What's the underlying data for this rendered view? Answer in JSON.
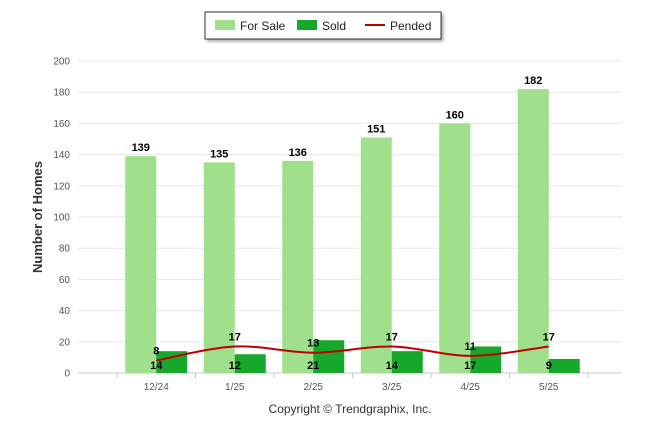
{
  "chart_data": {
    "type": "bar",
    "categories": [
      "12/24",
      "1/25",
      "2/25",
      "3/25",
      "4/25",
      "5/25"
    ],
    "series": [
      {
        "name": "For Sale",
        "kind": "bar",
        "color": "#a0e08a",
        "values": [
          139,
          135,
          136,
          151,
          160,
          182
        ]
      },
      {
        "name": "Sold",
        "kind": "bar",
        "color": "#16a82a",
        "values": [
          14,
          12,
          21,
          14,
          17,
          9
        ]
      },
      {
        "name": "Pended",
        "kind": "line",
        "color": "#c00000",
        "values": [
          8,
          17,
          13,
          17,
          11,
          17
        ]
      }
    ],
    "ylabel": "Number of Homes",
    "xlabel": "",
    "ylim": [
      0,
      200
    ],
    "yticks": [
      "0",
      "20",
      "40",
      "60",
      "80",
      "100",
      "120",
      "140",
      "160",
      "180",
      "200"
    ],
    "grid": true,
    "legend_position": "top-center"
  },
  "footer": {
    "copyright": "Copyright © Trendgraphix, Inc."
  }
}
